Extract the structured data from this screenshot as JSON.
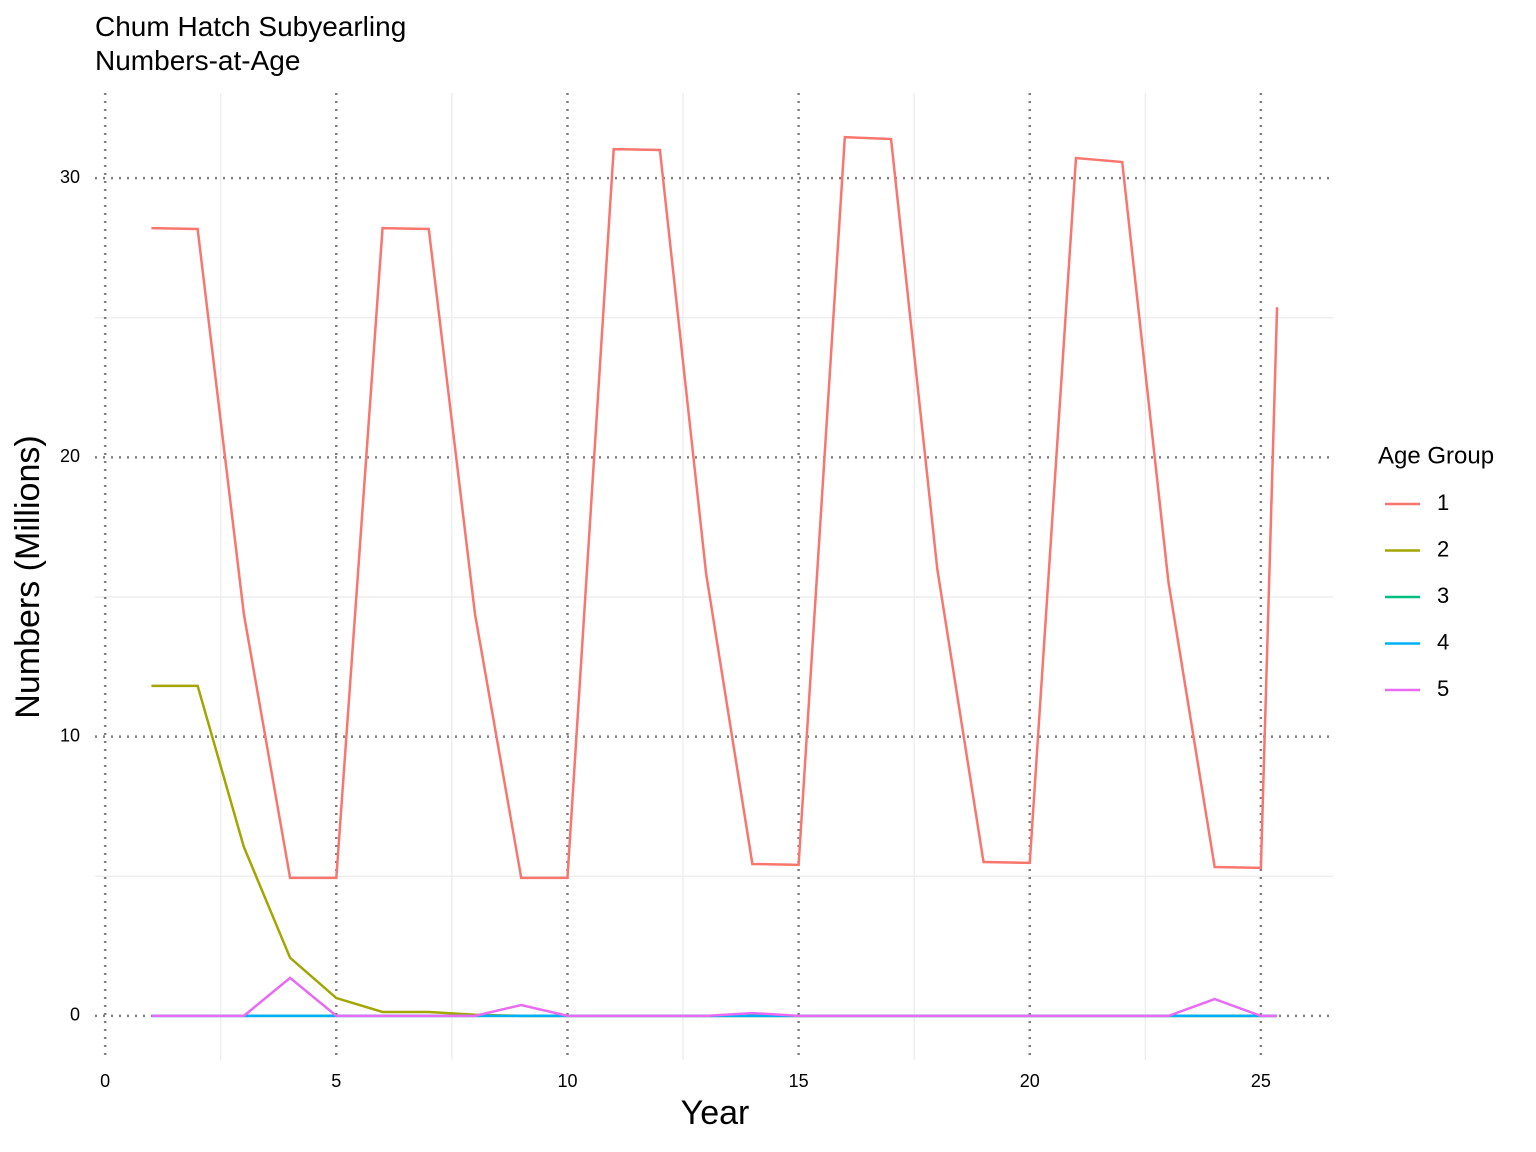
{
  "chart_data": {
    "type": "line",
    "title": "Chum Hatch Subyearling\nNumbers-at-Age",
    "x_label": "Year",
    "y_label": "Numbers (Millions)",
    "legend_title": "Age Group",
    "legend": "right",
    "grid": true,
    "x": [
      1,
      2,
      3,
      4,
      5,
      6,
      7,
      8,
      9,
      10,
      11,
      12,
      13,
      14,
      15,
      16,
      17,
      18,
      19,
      20,
      21,
      22,
      23,
      24,
      25,
      25.35
    ],
    "series": [
      {
        "name": "1",
        "color": "#F8766D",
        "values": [
          28.21,
          28.18,
          14.39,
          4.94,
          4.94,
          28.21,
          28.18,
          14.39,
          4.94,
          4.94,
          31.04,
          31.01,
          15.83,
          5.44,
          5.41,
          31.47,
          31.4,
          16.0,
          5.51,
          5.48,
          30.72,
          30.58,
          15.54,
          5.33,
          5.3,
          25.38
        ]
      },
      {
        "name": "2",
        "color": "#A3A500",
        "values": [
          11.82,
          11.82,
          6.05,
          2.08,
          0.64,
          0.14,
          0.14,
          0.04,
          0,
          0,
          0,
          0,
          0,
          0,
          0,
          0,
          0,
          0,
          0,
          0,
          0,
          0,
          0,
          0,
          0,
          0
        ]
      },
      {
        "name": "3",
        "color": "#00BF7D",
        "values": [
          0,
          0,
          0,
          0,
          0,
          0,
          0,
          0,
          0,
          0,
          0,
          0,
          0,
          0,
          0,
          0,
          0,
          0,
          0,
          0,
          0,
          0,
          0,
          0,
          0,
          0
        ]
      },
      {
        "name": "4",
        "color": "#00B0F6",
        "values": [
          0,
          0,
          0,
          0,
          0,
          0,
          0,
          0,
          0,
          0,
          0,
          0,
          0,
          0,
          0,
          0,
          0,
          0,
          0,
          0,
          0,
          0,
          0,
          0,
          0,
          0
        ]
      },
      {
        "name": "5",
        "color": "#E76BF3",
        "values": [
          0,
          0,
          0,
          1.36,
          0,
          0,
          0,
          0,
          0.39,
          0,
          0,
          0,
          0,
          0.1,
          0,
          0,
          0,
          0,
          0,
          0,
          0,
          0,
          0,
          0.6,
          0,
          0
        ]
      }
    ],
    "xlim": [
      -0.22,
      26.56
    ],
    "xticks": [
      0,
      5,
      10,
      15,
      20,
      25
    ],
    "ylim": [
      -1.58,
      33.05
    ],
    "yticks": [
      0,
      10,
      20,
      30
    ]
  }
}
